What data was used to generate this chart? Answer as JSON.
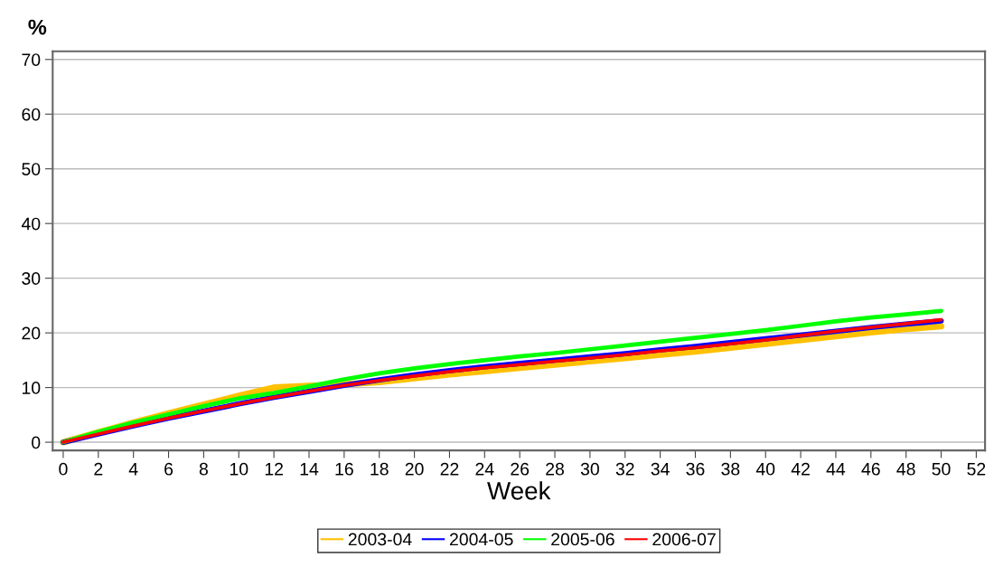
{
  "chart_data": {
    "type": "line",
    "ylabel": "%",
    "xlabel": "Week",
    "x": [
      0,
      2,
      4,
      6,
      8,
      10,
      12,
      14,
      16,
      18,
      20,
      22,
      24,
      26,
      28,
      30,
      32,
      34,
      36,
      38,
      40,
      42,
      44,
      46,
      48,
      50
    ],
    "series": [
      {
        "name": "2003-04",
        "color": "#ffc000",
        "values": [
          0,
          1.8,
          3.6,
          5.3,
          6.9,
          8.5,
          10,
          10.3,
          10.6,
          11,
          11.7,
          12.4,
          13,
          13.6,
          14.2,
          14.8,
          15.4,
          16,
          16.6,
          17.3,
          18,
          18.7,
          19.4,
          20.1,
          20.7,
          21.2
        ]
      },
      {
        "name": "2004-05",
        "color": "#0000ff",
        "values": [
          0,
          1.5,
          3,
          4.4,
          5.7,
          7,
          8.2,
          9.3,
          10.4,
          11.4,
          12.3,
          13.1,
          13.8,
          14.4,
          15,
          15.6,
          16.2,
          16.9,
          17.5,
          18.2,
          18.9,
          19.6,
          20.3,
          21,
          21.6,
          22.2
        ]
      },
      {
        "name": "2005-06",
        "color": "#00ff00",
        "values": [
          0,
          1.9,
          3.6,
          5.1,
          6.6,
          8,
          9,
          10.2,
          11.5,
          12.6,
          13.5,
          14.3,
          15,
          15.7,
          16.3,
          17,
          17.7,
          18.4,
          19.1,
          19.8,
          20.5,
          21.3,
          22.1,
          22.8,
          23.4,
          24
        ]
      },
      {
        "name": "2006-07",
        "color": "#ff0000",
        "values": [
          0,
          1.5,
          3,
          4.4,
          5.7,
          7,
          8.2,
          9.3,
          10.4,
          11.3,
          12.1,
          12.9,
          13.6,
          14.2,
          14.8,
          15.4,
          16,
          16.7,
          17.3,
          18,
          18.7,
          19.5,
          20.3,
          21,
          21.7,
          22.4
        ]
      }
    ],
    "xlim": [
      -0.6,
      52.5
    ],
    "xticks": [
      0,
      2,
      4,
      6,
      8,
      10,
      12,
      14,
      16,
      18,
      20,
      22,
      24,
      26,
      28,
      30,
      32,
      34,
      36,
      38,
      40,
      42,
      44,
      46,
      48,
      50,
      52
    ],
    "ylim": [
      -1.5,
      71.5
    ],
    "yticks": [
      0,
      10,
      20,
      30,
      40,
      50,
      60,
      70
    ],
    "grid": "y",
    "legend": "bottom",
    "marker": "none",
    "line_style": "solid"
  }
}
